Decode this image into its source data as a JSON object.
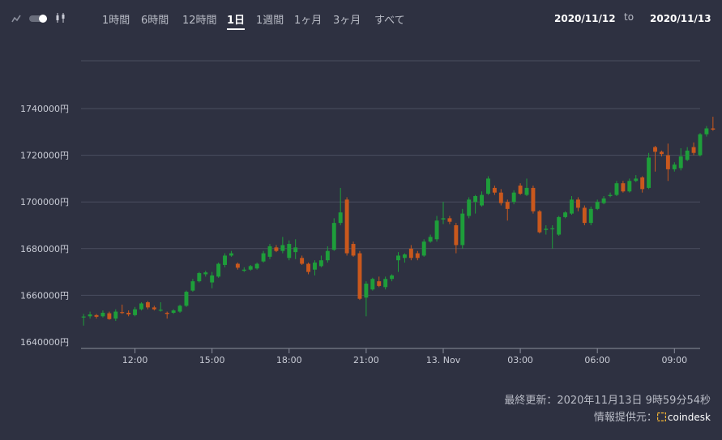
{
  "toolbar": {
    "icons": [
      "line-chart-icon",
      "toggle-icon",
      "candlestick-icon"
    ],
    "tabs": [
      {
        "label": "1時間"
      },
      {
        "label": "6時間"
      },
      {
        "label": "12時間"
      },
      {
        "label": "1日"
      },
      {
        "label": "1週間"
      },
      {
        "label": "1ヶ月"
      },
      {
        "label": "3ヶ月"
      },
      {
        "label": "すべて"
      }
    ],
    "active_tab": "1日",
    "date_from": "2020/11/12",
    "to_label": "to",
    "date_to": "2020/11/13"
  },
  "footer": {
    "updated": "最終更新：2020年11月13日 9時59分54秒",
    "source_label": "情報提供元：",
    "source_name": "coindesk"
  },
  "colors": {
    "background": "#2e3141",
    "up": "#1e9e3a",
    "down": "#c9581d",
    "grid": "#4a4e60",
    "brand": "#f7b733"
  },
  "chart_data": {
    "type": "candlestick",
    "currency_suffix": "円",
    "ylim": [
      1636000,
      1755000
    ],
    "y_ticks": [
      1640000,
      1660000,
      1680000,
      1700000,
      1720000,
      1740000
    ],
    "y_tick_labels": [
      "1640000円",
      "1660000円",
      "1680000円",
      "1700000円",
      "1720000円",
      "1740000円"
    ],
    "x_ticks": [
      "12:00",
      "15:00",
      "18:00",
      "21:00",
      "13. Nov",
      "03:00",
      "06:00",
      "09:00"
    ],
    "x_tick_hours": [
      12,
      15,
      18,
      21,
      24,
      27,
      30,
      33
    ],
    "x_range_hours": [
      9.9,
      34.0
    ],
    "grid": true,
    "interval_minutes": 15,
    "start_hour": 10.0,
    "candles": [
      [
        1650800,
        1650900,
        1647000,
        1652000
      ],
      [
        1651000,
        1651800,
        1650000,
        1653000
      ],
      [
        1651500,
        1650800,
        1650000,
        1652000
      ],
      [
        1651000,
        1652500,
        1650500,
        1653500
      ],
      [
        1652300,
        1649800,
        1649500,
        1653000
      ],
      [
        1650000,
        1653000,
        1649000,
        1654000
      ],
      [
        1652800,
        1652500,
        1652000,
        1656000
      ],
      [
        1652500,
        1651800,
        1651000,
        1653500
      ],
      [
        1651500,
        1654000,
        1651000,
        1655000
      ],
      [
        1654000,
        1656500,
        1653500,
        1657000
      ],
      [
        1657000,
        1654800,
        1654000,
        1657500
      ],
      [
        1654800,
        1654000,
        1653500,
        1655500
      ],
      [
        1653500,
        1653800,
        1653000,
        1657000
      ],
      [
        1652500,
        1652000,
        1650000,
        1653000
      ],
      [
        1652500,
        1653500,
        1652000,
        1654000
      ],
      [
        1653000,
        1655500,
        1652500,
        1656000
      ],
      [
        1655500,
        1661500,
        1655000,
        1662000
      ],
      [
        1662000,
        1666000,
        1661500,
        1667000
      ],
      [
        1666000,
        1669500,
        1665500,
        1670000
      ],
      [
        1669000,
        1669800,
        1668000,
        1670500
      ],
      [
        1665500,
        1668500,
        1663000,
        1670000
      ],
      [
        1668000,
        1673500,
        1667500,
        1674000
      ],
      [
        1673000,
        1677000,
        1672000,
        1678000
      ],
      [
        1677000,
        1678000,
        1676500,
        1679000
      ],
      [
        1673500,
        1671800,
        1671000,
        1674000
      ],
      [
        1670500,
        1671000,
        1670000,
        1672000
      ],
      [
        1671000,
        1672500,
        1670500,
        1673000
      ],
      [
        1671500,
        1673500,
        1671000,
        1674000
      ],
      [
        1674500,
        1678000,
        1674000,
        1679000
      ],
      [
        1676500,
        1681000,
        1675500,
        1682000
      ],
      [
        1680500,
        1679000,
        1678500,
        1681500
      ],
      [
        1679000,
        1681500,
        1678000,
        1685000
      ],
      [
        1676000,
        1682000,
        1675000,
        1683500
      ],
      [
        1678500,
        1680500,
        1675500,
        1684000
      ],
      [
        1676000,
        1673500,
        1673000,
        1677000
      ],
      [
        1673500,
        1670000,
        1669000,
        1674000
      ],
      [
        1671000,
        1674000,
        1668500,
        1675000
      ],
      [
        1672500,
        1675000,
        1672000,
        1677000
      ],
      [
        1675000,
        1679000,
        1674000,
        1681000
      ],
      [
        1679500,
        1691000,
        1679000,
        1693000
      ],
      [
        1691000,
        1695500,
        1690000,
        1706000
      ],
      [
        1701000,
        1678000,
        1677000,
        1702000
      ],
      [
        1682000,
        1677000,
        1676500,
        1683000
      ],
      [
        1678000,
        1658500,
        1658000,
        1679000
      ],
      [
        1659000,
        1665000,
        1651000,
        1666000
      ],
      [
        1662500,
        1667000,
        1662000,
        1667500
      ],
      [
        1666000,
        1664000,
        1663500,
        1668000
      ],
      [
        1663500,
        1667000,
        1662500,
        1668000
      ],
      [
        1667000,
        1668500,
        1666000,
        1669000
      ],
      [
        1675000,
        1677000,
        1670000,
        1678500
      ],
      [
        1676000,
        1677500,
        1674000,
        1678000
      ],
      [
        1680000,
        1676000,
        1675000,
        1681500
      ],
      [
        1678000,
        1676000,
        1675000,
        1679000
      ],
      [
        1677000,
        1683000,
        1676500,
        1684000
      ],
      [
        1683000,
        1685000,
        1682500,
        1686000
      ],
      [
        1684000,
        1692000,
        1683000,
        1694000
      ],
      [
        1692500,
        1693000,
        1690500,
        1700000
      ],
      [
        1693000,
        1691500,
        1690500,
        1694000
      ],
      [
        1690000,
        1681500,
        1678000,
        1691000
      ],
      [
        1681500,
        1695000,
        1680000,
        1697000
      ],
      [
        1694000,
        1701000,
        1693000,
        1702000
      ],
      [
        1700000,
        1702500,
        1695000,
        1703000
      ],
      [
        1698500,
        1703000,
        1698000,
        1704500
      ],
      [
        1703500,
        1710000,
        1703000,
        1711000
      ],
      [
        1706000,
        1704000,
        1703000,
        1707000
      ],
      [
        1704000,
        1699500,
        1698500,
        1705500
      ],
      [
        1700000,
        1697000,
        1692000,
        1701000
      ],
      [
        1700000,
        1704000,
        1699000,
        1705000
      ],
      [
        1707000,
        1703500,
        1703000,
        1708000
      ],
      [
        1703000,
        1706000,
        1702500,
        1710000
      ],
      [
        1706000,
        1696000,
        1695000,
        1707000
      ],
      [
        1696000,
        1687000,
        1686500,
        1696500
      ],
      [
        1688000,
        1688500,
        1686000,
        1690000
      ],
      [
        1688500,
        1688700,
        1680000,
        1690000
      ],
      [
        1686000,
        1693500,
        1685500,
        1694000
      ],
      [
        1693500,
        1695500,
        1693000,
        1696000
      ],
      [
        1695000,
        1701000,
        1694500,
        1702500
      ],
      [
        1701000,
        1697500,
        1696000,
        1702000
      ],
      [
        1697500,
        1691000,
        1690000,
        1698500
      ],
      [
        1691000,
        1697000,
        1690000,
        1698000
      ],
      [
        1697000,
        1700000,
        1696500,
        1701000
      ],
      [
        1699500,
        1701500,
        1699000,
        1702500
      ],
      [
        1702500,
        1703000,
        1702000,
        1704000
      ],
      [
        1703000,
        1708000,
        1702500,
        1709000
      ],
      [
        1708000,
        1704500,
        1704000,
        1709000
      ],
      [
        1704500,
        1709000,
        1704000,
        1710000
      ],
      [
        1709000,
        1710000,
        1708500,
        1711500
      ],
      [
        1710500,
        1705500,
        1704000,
        1711000
      ],
      [
        1706000,
        1719000,
        1705500,
        1721000
      ],
      [
        1723500,
        1721500,
        1713000,
        1724000
      ],
      [
        1721500,
        1720500,
        1719500,
        1722000
      ],
      [
        1720000,
        1714000,
        1709000,
        1725000
      ],
      [
        1714000,
        1716000,
        1713000,
        1717000
      ],
      [
        1714500,
        1719500,
        1713500,
        1723000
      ],
      [
        1718000,
        1722000,
        1717500,
        1723500
      ],
      [
        1723500,
        1721000,
        1720000,
        1725500
      ],
      [
        1720000,
        1729000,
        1719500,
        1729500
      ],
      [
        1729000,
        1731500,
        1728000,
        1732500
      ],
      [
        1731500,
        1731000,
        1730500,
        1736500
      ]
    ]
  }
}
